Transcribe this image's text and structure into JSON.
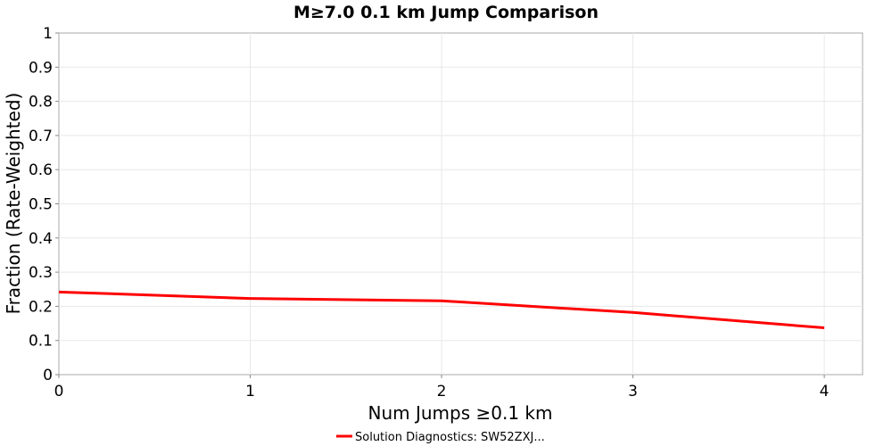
{
  "chart_data": {
    "type": "line",
    "title": "M≥7.0 0.1 km Jump Comparison",
    "xlabel": "Num Jumps ≥0.1 km",
    "ylabel": "Fraction (Rate-Weighted)",
    "xlim": [
      0,
      4.2
    ],
    "ylim": [
      0,
      1
    ],
    "x_ticks": [
      "0",
      "1",
      "2",
      "3",
      "4"
    ],
    "y_ticks": [
      "0",
      "0.1",
      "0.2",
      "0.3",
      "0.4",
      "0.5",
      "0.6",
      "0.7",
      "0.8",
      "0.9",
      "1"
    ],
    "grid": true,
    "legend_position": "bottom-center",
    "series": [
      {
        "name": "Solution Diagnostics: SW52ZXJ...",
        "color": "#ff0000",
        "x": [
          0,
          1,
          2,
          3,
          4
        ],
        "y": [
          0.242,
          0.223,
          0.216,
          0.182,
          0.137
        ]
      }
    ]
  }
}
